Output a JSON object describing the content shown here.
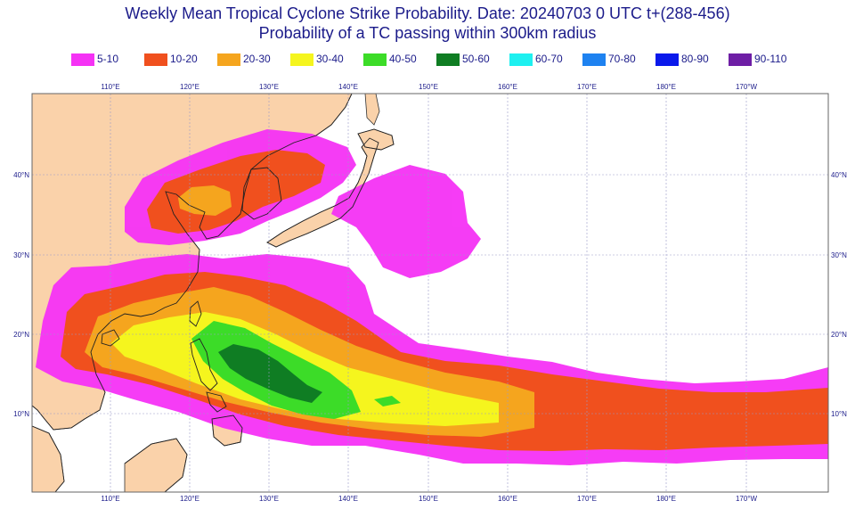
{
  "chart_data": {
    "type": "heatmap",
    "title": "Weekly Mean Tropical Cyclone Strike Probability. Date: 20240703  0 UTC    t+(288-456)",
    "subtitle": "Probability of a TC passing within  300km radius",
    "legend": {
      "placement": "top",
      "items": [
        {
          "label": "5-10",
          "color": "#f532f5"
        },
        {
          "label": "10-20",
          "color": "#f0501e"
        },
        {
          "label": "20-30",
          "color": "#f5a51e"
        },
        {
          "label": "30-40",
          "color": "#f5f51e"
        },
        {
          "label": "40-50",
          "color": "#3cdc28"
        },
        {
          "label": "50-60",
          "color": "#0f7d23"
        },
        {
          "label": "60-70",
          "color": "#1ef0f0"
        },
        {
          "label": "70-80",
          "color": "#1e82f0"
        },
        {
          "label": "80-90",
          "color": "#0a19eb"
        },
        {
          "label": "90-110",
          "color": "#6e1ea5"
        }
      ]
    },
    "x_ticks": [
      "110°E",
      "120°E",
      "130°E",
      "140°E",
      "150°E",
      "160°E",
      "170°E",
      "180°E",
      "170°W"
    ],
    "y_ticks": [
      "40°N",
      "30°N",
      "20°N",
      "10°N"
    ],
    "x_range": [
      "100°E",
      "170°W"
    ],
    "y_range": [
      "0°N",
      "50°N"
    ],
    "grid": true,
    "land_color": "#fad2aa",
    "ocean_color": "#ffffff",
    "regions": [
      {
        "name": "Main West Pacific track (South China Sea to dateline)",
        "probability_band": "5-10 to 50-60"
      },
      {
        "name": "Northern band (Yellow Sea / Korea)",
        "probability_band": "5-10 to 20-30"
      },
      {
        "name": "East of Japan",
        "probability_band": "5-10"
      }
    ]
  }
}
